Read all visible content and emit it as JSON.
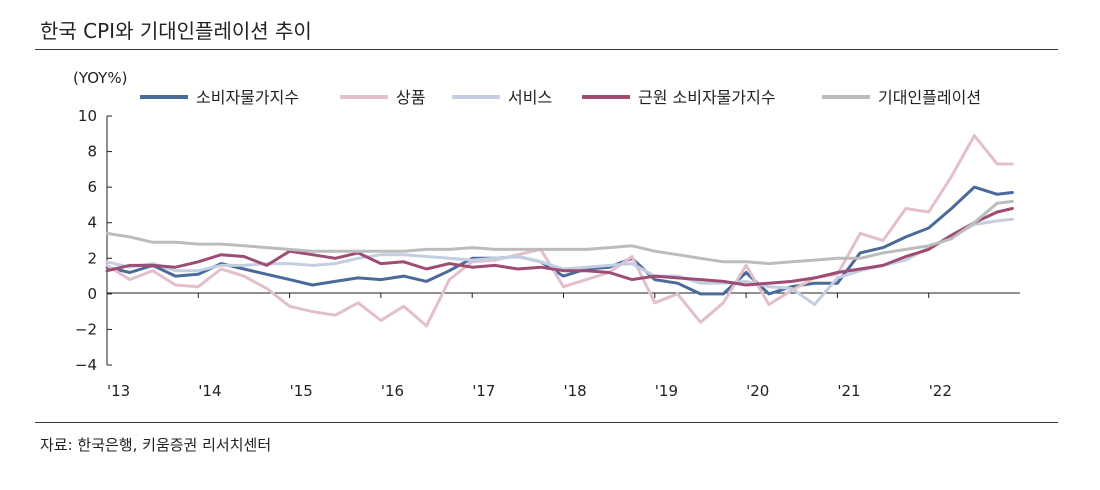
{
  "title": "한국 CPI와 기대인플레이션 추이",
  "source": "자료: 한국은행, 키움증권 리서치센터",
  "colors": {
    "cpi": "#4a6a99",
    "goods": "#e3bfcb",
    "services": "#c3cfe0",
    "core": "#9e4c74",
    "expected": "#bcbcbc",
    "axis": "#222222"
  },
  "chart_data": {
    "type": "line",
    "ylabel": "(YOY%)",
    "ylim": [
      -4,
      10
    ],
    "yticks": [
      10,
      8,
      6,
      4,
      2,
      0,
      -2,
      -4
    ],
    "ytick_labels": [
      "10",
      "8",
      "6",
      "4",
      "2",
      "0",
      "−2",
      "−4"
    ],
    "xlim": [
      2013.0,
      2023.0
    ],
    "xticks": [
      2013,
      2014,
      2015,
      2016,
      2017,
      2018,
      2019,
      2020,
      2021,
      2022
    ],
    "xtick_labels": [
      "'13",
      "'14",
      "'15",
      "'16",
      "'17",
      "'18",
      "'19",
      "'20",
      "'21",
      "'22"
    ],
    "grid": false,
    "legend": "top",
    "series": [
      {
        "key": "cpi",
        "name": "소비자물가지수",
        "x": [
          2013.0,
          2013.25,
          2013.5,
          2013.75,
          2014.0,
          2014.25,
          2014.5,
          2014.75,
          2015.0,
          2015.25,
          2015.5,
          2015.75,
          2016.0,
          2016.25,
          2016.5,
          2016.75,
          2017.0,
          2017.25,
          2017.5,
          2017.75,
          2018.0,
          2018.25,
          2018.5,
          2018.75,
          2019.0,
          2019.25,
          2019.5,
          2019.75,
          2020.0,
          2020.25,
          2020.5,
          2020.75,
          2021.0,
          2021.25,
          2021.5,
          2021.75,
          2022.0,
          2022.25,
          2022.5,
          2022.75,
          2022.917
        ],
        "y": [
          1.5,
          1.2,
          1.6,
          1.0,
          1.1,
          1.7,
          1.4,
          1.1,
          0.8,
          0.5,
          0.7,
          0.9,
          0.8,
          1.0,
          0.7,
          1.3,
          2.0,
          2.0,
          2.1,
          1.8,
          1.0,
          1.4,
          1.5,
          2.0,
          0.8,
          0.6,
          0.0,
          0.0,
          1.2,
          0.0,
          0.4,
          0.6,
          0.6,
          2.3,
          2.6,
          3.2,
          3.7,
          4.8,
          6.0,
          5.6,
          5.7
        ]
      },
      {
        "key": "goods",
        "name": "상품",
        "x": [
          2013.0,
          2013.25,
          2013.5,
          2013.75,
          2014.0,
          2014.25,
          2014.5,
          2014.75,
          2015.0,
          2015.25,
          2015.5,
          2015.75,
          2016.0,
          2016.25,
          2016.5,
          2016.75,
          2017.0,
          2017.25,
          2017.5,
          2017.75,
          2018.0,
          2018.25,
          2018.5,
          2018.75,
          2019.0,
          2019.25,
          2019.5,
          2019.75,
          2020.0,
          2020.25,
          2020.5,
          2020.75,
          2021.0,
          2021.25,
          2021.5,
          2021.75,
          2022.0,
          2022.25,
          2022.5,
          2022.75,
          2022.917
        ],
        "y": [
          1.6,
          0.8,
          1.3,
          0.5,
          0.4,
          1.4,
          1.0,
          0.3,
          -0.7,
          -1.0,
          -1.2,
          -0.5,
          -1.5,
          -0.7,
          -1.8,
          0.8,
          1.8,
          1.9,
          2.2,
          2.5,
          0.4,
          0.8,
          1.2,
          2.1,
          -0.5,
          0.0,
          -1.6,
          -0.5,
          1.6,
          -0.6,
          0.2,
          0.9,
          1.1,
          3.4,
          3.0,
          4.8,
          4.6,
          6.6,
          8.9,
          7.3,
          7.3
        ]
      },
      {
        "key": "services",
        "name": "서비스",
        "x": [
          2013.0,
          2013.25,
          2013.5,
          2013.75,
          2014.0,
          2014.25,
          2014.5,
          2014.75,
          2015.0,
          2015.25,
          2015.5,
          2015.75,
          2016.0,
          2016.25,
          2016.5,
          2016.75,
          2017.0,
          2017.25,
          2017.5,
          2017.75,
          2018.0,
          2018.25,
          2018.5,
          2018.75,
          2019.0,
          2019.25,
          2019.5,
          2019.75,
          2020.0,
          2020.25,
          2020.5,
          2020.75,
          2021.0,
          2021.25,
          2021.5,
          2021.75,
          2022.0,
          2022.25,
          2022.5,
          2022.75,
          2022.917
        ],
        "y": [
          1.8,
          1.5,
          1.7,
          1.3,
          1.3,
          1.6,
          1.6,
          1.7,
          1.7,
          1.6,
          1.7,
          2.0,
          2.2,
          2.2,
          2.1,
          2.0,
          1.9,
          2.0,
          2.1,
          1.8,
          1.4,
          1.5,
          1.6,
          1.7,
          1.0,
          1.0,
          0.6,
          0.6,
          0.7,
          0.4,
          0.3,
          -0.6,
          0.9,
          1.3,
          1.6,
          1.9,
          2.6,
          3.2,
          3.9,
          4.1,
          4.2
        ]
      },
      {
        "key": "core",
        "name": "근원 소비자물가지수",
        "x": [
          2013.0,
          2013.25,
          2013.5,
          2013.75,
          2014.0,
          2014.25,
          2014.5,
          2014.75,
          2015.0,
          2015.25,
          2015.5,
          2015.75,
          2016.0,
          2016.25,
          2016.5,
          2016.75,
          2017.0,
          2017.25,
          2017.5,
          2017.75,
          2018.0,
          2018.25,
          2018.5,
          2018.75,
          2019.0,
          2019.25,
          2019.5,
          2019.75,
          2020.0,
          2020.25,
          2020.5,
          2020.75,
          2021.0,
          2021.25,
          2021.5,
          2021.75,
          2022.0,
          2022.25,
          2022.5,
          2022.75,
          2022.917
        ],
        "y": [
          1.3,
          1.6,
          1.6,
          1.5,
          1.8,
          2.2,
          2.1,
          1.6,
          2.4,
          2.2,
          2.0,
          2.3,
          1.7,
          1.8,
          1.4,
          1.7,
          1.5,
          1.6,
          1.4,
          1.5,
          1.3,
          1.3,
          1.2,
          0.8,
          1.0,
          0.9,
          0.8,
          0.7,
          0.5,
          0.6,
          0.7,
          0.9,
          1.2,
          1.4,
          1.6,
          2.1,
          2.5,
          3.3,
          4.0,
          4.6,
          4.8
        ]
      },
      {
        "key": "expected",
        "name": "기대인플레이션",
        "x": [
          2013.0,
          2013.25,
          2013.5,
          2013.75,
          2014.0,
          2014.25,
          2014.5,
          2014.75,
          2015.0,
          2015.25,
          2015.5,
          2015.75,
          2016.0,
          2016.25,
          2016.5,
          2016.75,
          2017.0,
          2017.25,
          2017.5,
          2017.75,
          2018.0,
          2018.25,
          2018.5,
          2018.75,
          2019.0,
          2019.25,
          2019.5,
          2019.75,
          2020.0,
          2020.25,
          2020.5,
          2020.75,
          2021.0,
          2021.25,
          2021.5,
          2021.75,
          2022.0,
          2022.25,
          2022.5,
          2022.75,
          2022.917
        ],
        "y": [
          3.4,
          3.2,
          2.9,
          2.9,
          2.8,
          2.8,
          2.7,
          2.6,
          2.5,
          2.4,
          2.4,
          2.4,
          2.4,
          2.4,
          2.5,
          2.5,
          2.6,
          2.5,
          2.5,
          2.5,
          2.5,
          2.5,
          2.6,
          2.7,
          2.4,
          2.2,
          2.0,
          1.8,
          1.8,
          1.7,
          1.8,
          1.9,
          2.0,
          2.0,
          2.3,
          2.5,
          2.7,
          3.1,
          4.0,
          5.1,
          5.2
        ]
      }
    ]
  }
}
